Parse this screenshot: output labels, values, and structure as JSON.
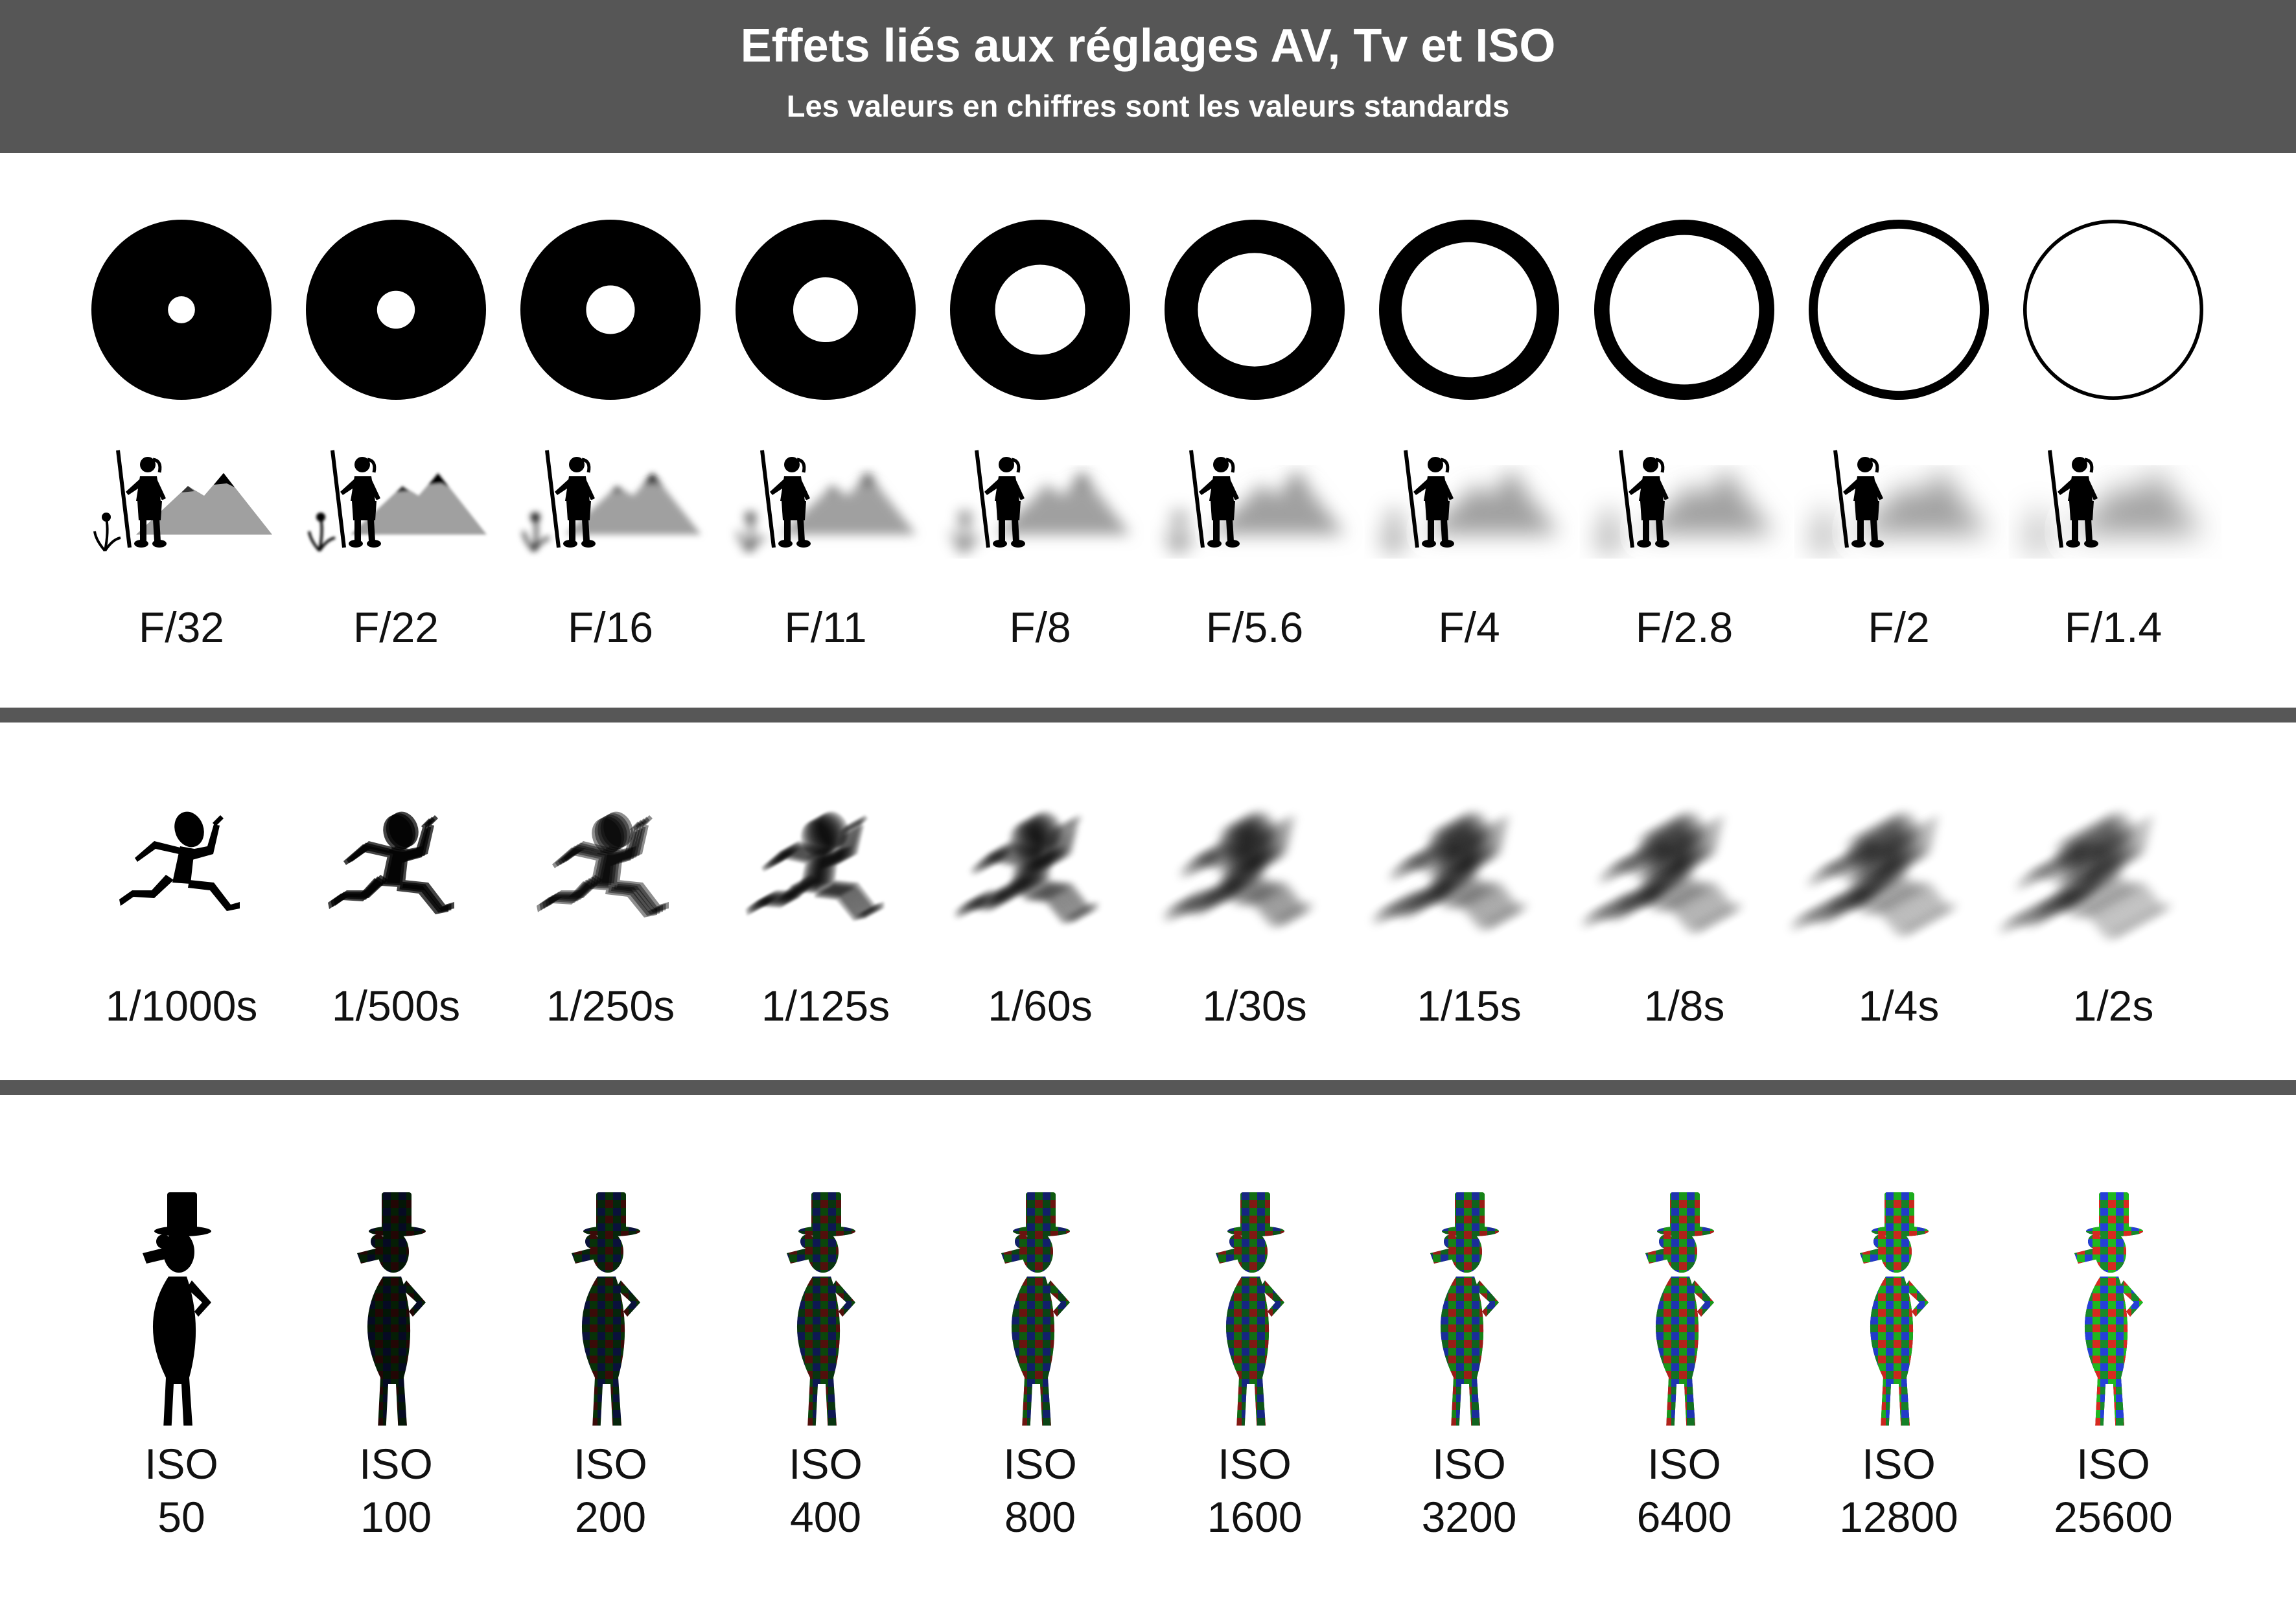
{
  "header": {
    "title": "Effets liés aux réglages AV, Tv et ISO",
    "subtitle": "Les valeurs en chiffres sont les valeurs standards"
  },
  "aperture": {
    "labels": [
      "F/32",
      "F/22",
      "F/16",
      "F/11",
      "F/8",
      "F/5.6",
      "F/4",
      "F/2.8",
      "F/2",
      "F/1.4"
    ],
    "opening_ratio": [
      0.15,
      0.21,
      0.27,
      0.36,
      0.5,
      0.63,
      0.75,
      0.83,
      0.9,
      0.96
    ]
  },
  "shutter": {
    "labels": [
      "1/1000s",
      "1/500s",
      "1/250s",
      "1/125s",
      "1/60s",
      "1/30s",
      "1/15s",
      "1/8s",
      "1/4s",
      "1/2s"
    ]
  },
  "iso": {
    "labels": [
      [
        "ISO",
        "50"
      ],
      [
        "ISO",
        "100"
      ],
      [
        "ISO",
        "200"
      ],
      [
        "ISO",
        "400"
      ],
      [
        "ISO",
        "800"
      ],
      [
        "ISO",
        "1600"
      ],
      [
        "ISO",
        "3200"
      ],
      [
        "ISO",
        "6400"
      ],
      [
        "ISO",
        "12800"
      ],
      [
        "ISO",
        "25600"
      ]
    ]
  },
  "icons": {
    "aperture": "aperture-diaphragm-icon",
    "depth": "hiker-mountain-icon",
    "motion": "running-figure-icon",
    "noise": "gentleman-top-hat-icon"
  }
}
